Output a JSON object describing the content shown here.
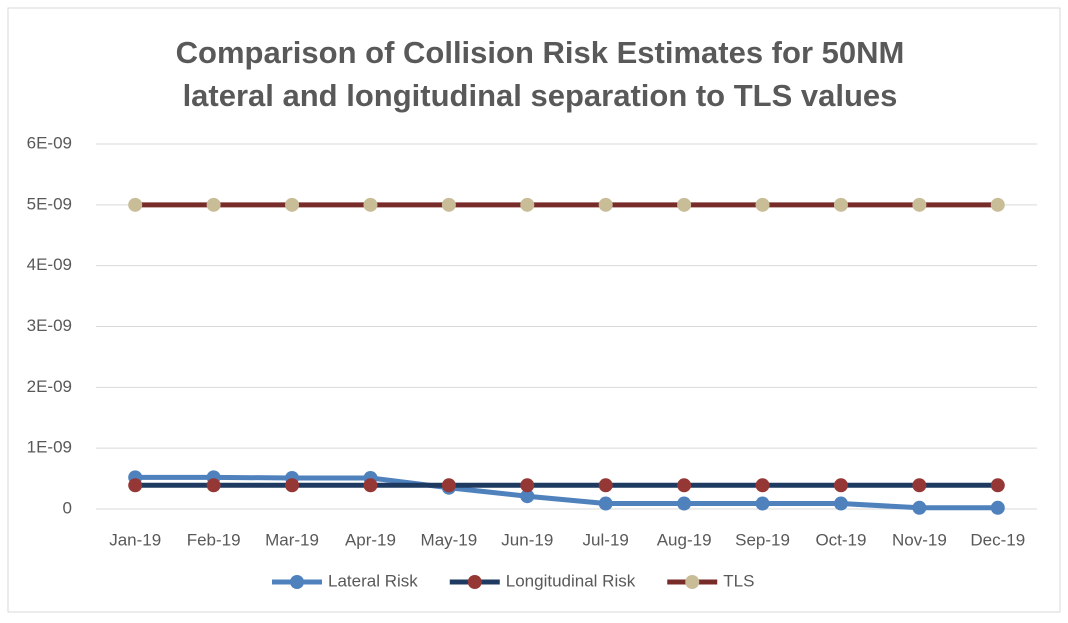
{
  "chart_data": {
    "type": "line",
    "title": [
      "Comparison of Collision Risk Estimates for 50NM",
      "lateral and longitudinal separation to TLS values"
    ],
    "categories": [
      "Jan-19",
      "Feb-19",
      "Mar-19",
      "Apr-19",
      "May-19",
      "Jun-19",
      "Jul-19",
      "Aug-19",
      "Sep-19",
      "Oct-19",
      "Nov-19",
      "Dec-19"
    ],
    "series": [
      {
        "name": "Lateral Risk",
        "color": "#4f81bd",
        "marker_color": "#4f81bd",
        "values": [
          5.2e-10,
          5.2e-10,
          5.1e-10,
          5.1e-10,
          3.5e-10,
          2.1e-10,
          9e-11,
          9e-11,
          9e-11,
          9e-11,
          2e-11,
          2e-11
        ]
      },
      {
        "name": "Longitudinal Risk",
        "color": "#1f3a60",
        "marker_color": "#953735",
        "values": [
          3.9e-10,
          3.9e-10,
          3.9e-10,
          3.9e-10,
          3.9e-10,
          3.9e-10,
          3.9e-10,
          3.9e-10,
          3.9e-10,
          3.9e-10,
          3.9e-10,
          3.9e-10
        ]
      },
      {
        "name": "TLS",
        "color": "#772c2a",
        "marker_color": "#c9bd98",
        "values": [
          5e-09,
          5e-09,
          5e-09,
          5e-09,
          5e-09,
          5e-09,
          5e-09,
          5e-09,
          5e-09,
          5e-09,
          5e-09,
          5e-09
        ]
      }
    ],
    "ylim": [
      0,
      6e-09
    ],
    "yticks": [
      0,
      {
        "value": 1e-09,
        "label": "1E-09"
      },
      {
        "value": 2e-09,
        "label": "2E-09"
      },
      {
        "value": 3e-09,
        "label": "3E-09"
      },
      {
        "value": 4e-09,
        "label": "4E-09"
      },
      {
        "value": 5e-09,
        "label": "5E-09"
      },
      {
        "value": 6e-09,
        "label": "6E-09"
      }
    ],
    "grid": true,
    "legend": "bottom"
  }
}
